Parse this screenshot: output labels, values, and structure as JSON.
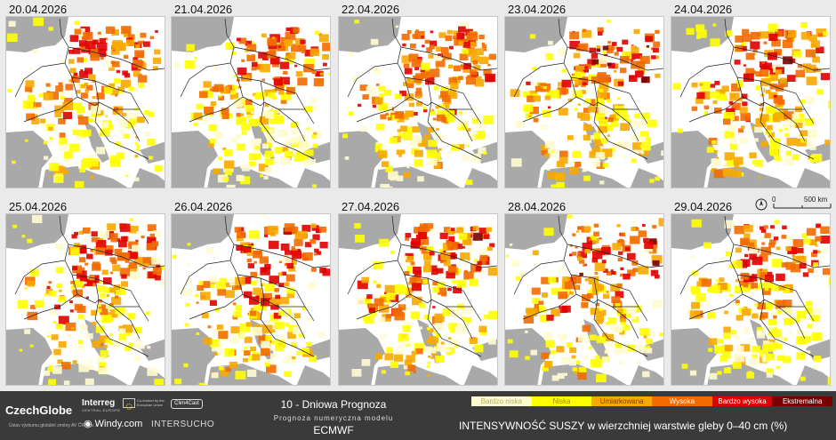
{
  "panels": [
    {
      "date": "20.04.2026",
      "intensity": 0.78
    },
    {
      "date": "21.04.2026",
      "intensity": 0.7
    },
    {
      "date": "22.04.2026",
      "intensity": 0.8
    },
    {
      "date": "23.04.2026",
      "intensity": 0.88
    },
    {
      "date": "24.04.2026",
      "intensity": 0.85
    },
    {
      "date": "25.04.2026",
      "intensity": 0.82
    },
    {
      "date": "26.04.2026",
      "intensity": 0.86
    },
    {
      "date": "27.04.2026",
      "intensity": 0.84
    },
    {
      "date": "28.04.2026",
      "intensity": 0.86
    },
    {
      "date": "29.04.2026",
      "intensity": 0.72
    }
  ],
  "scalebar": {
    "zero": "0",
    "distance": "500 km"
  },
  "footer": {
    "org": "CzechGlobe",
    "org_sub": "Ústav výzkumu globální změny AV ČR, v. v. i.",
    "interreg": "Interreg",
    "interreg_sub": "CENTRAL EUROPE",
    "eu_text": "Co-funded by the European Union",
    "clim4cast": "Clim4Cast",
    "windy": "Windy.com",
    "intersucho": "INTERSUCHO",
    "title": "10 - Dniowa Prognoza",
    "subtitle": "Prognoza numeryczna modelu",
    "model": "ECMWF",
    "legend_title": "INTENSYWNOŚĆ SUSZY w wierzchniej warstwie gleby 0–40 cm (%)"
  },
  "legend": [
    {
      "label": "Bardzo niska",
      "color": "#fffbd0",
      "text": "#b8b060"
    },
    {
      "label": "Niska",
      "color": "#ffff00",
      "text": "#a08800"
    },
    {
      "label": "Umiarkowana",
      "color": "#f8a800",
      "text": "#7a4000"
    },
    {
      "label": "Wysoka",
      "color": "#f26a00",
      "text": "#ffffff"
    },
    {
      "label": "Bardzo wysoka",
      "color": "#e00000",
      "text": "#ffffff"
    },
    {
      "label": "Ekstremalna",
      "color": "#7a0000",
      "text": "#ffffff"
    }
  ],
  "colors": {
    "sea": "#a9a9a9",
    "land_none": "#ffffff",
    "border": "#222222"
  }
}
